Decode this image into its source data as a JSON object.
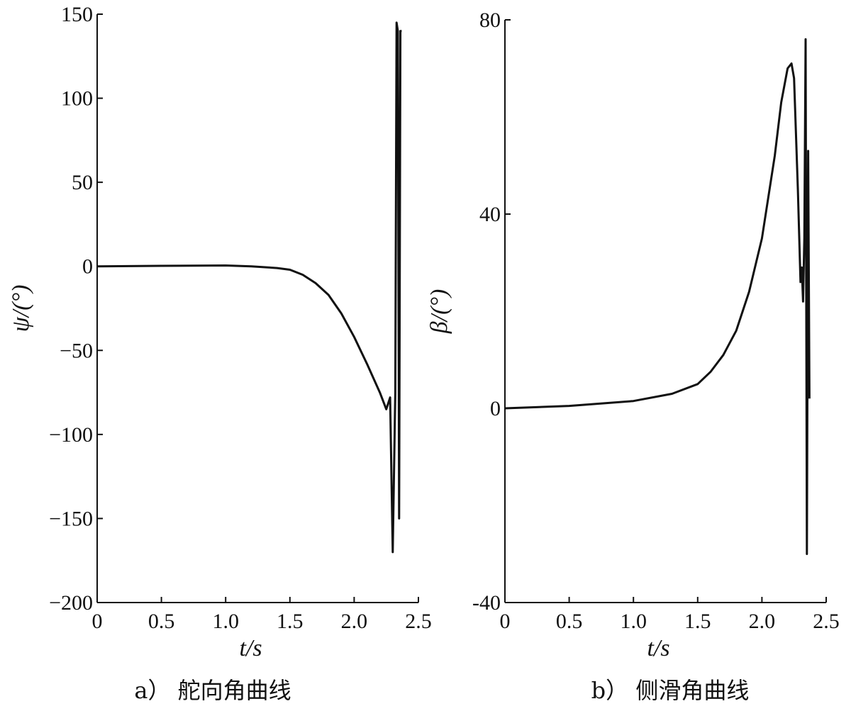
{
  "chart_data": [
    {
      "type": "line",
      "caption_prefix": "a）",
      "caption_title": "舵向角曲线",
      "xlabel": "t/s",
      "ylabel": "ψ/(°)",
      "xlim": [
        0,
        2.5
      ],
      "ylim": [
        -200,
        150
      ],
      "xticks": [
        "0",
        "0.5",
        "1.0",
        "1.5",
        "2.0",
        "2.5"
      ],
      "yticks": [
        "150",
        "100",
        "50",
        "0",
        "−50",
        "−100",
        "−150",
        "−200"
      ],
      "xtick_values": [
        0,
        0.5,
        1.0,
        1.5,
        2.0,
        2.5
      ],
      "ytick_values": [
        150,
        100,
        50,
        0,
        -50,
        -100,
        -150,
        -200
      ],
      "grid": false,
      "series": [
        {
          "x": [
            0,
            0.5,
            1.0,
            1.2,
            1.4,
            1.5,
            1.6,
            1.7,
            1.8,
            1.9,
            2.0,
            2.1,
            2.2,
            2.25,
            2.28,
            2.3,
            2.32,
            2.33,
            2.34,
            2.35,
            2.36,
            2.37
          ],
          "y": [
            0,
            0.3,
            0.5,
            0,
            -1,
            -2,
            -5,
            -10,
            -17,
            -28,
            -42,
            -58,
            -75,
            -85,
            -78,
            -170,
            -75,
            145,
            140,
            -150,
            140,
            140
          ]
        }
      ]
    },
    {
      "type": "line",
      "caption_prefix": "b）",
      "caption_title": "侧滑角曲线",
      "xlabel": "t/s",
      "ylabel": "β/(°)",
      "xlim": [
        0,
        2.5
      ],
      "ylim": [
        -40,
        80
      ],
      "xticks": [
        "0",
        "0.5",
        "1.0",
        "1.5",
        "2.0",
        "2.5"
      ],
      "yticks": [
        "80",
        "40",
        "0",
        "-40"
      ],
      "xtick_values": [
        0,
        0.5,
        1.0,
        1.5,
        2.0,
        2.5
      ],
      "ytick_values": [
        80,
        40,
        0,
        -40
      ],
      "grid": false,
      "series": [
        {
          "x": [
            0,
            0.5,
            1.0,
            1.3,
            1.5,
            1.6,
            1.7,
            1.8,
            1.9,
            2.0,
            2.1,
            2.15,
            2.2,
            2.23,
            2.25,
            2.28,
            2.3,
            2.31,
            2.32,
            2.33,
            2.34,
            2.35,
            2.36,
            2.37
          ],
          "y": [
            0,
            0.5,
            1.5,
            3,
            5,
            7.5,
            11,
            16,
            24,
            35,
            52,
            63,
            70,
            71,
            68,
            45,
            26,
            29,
            22,
            35,
            76,
            -30,
            53,
            2
          ]
        }
      ]
    }
  ]
}
